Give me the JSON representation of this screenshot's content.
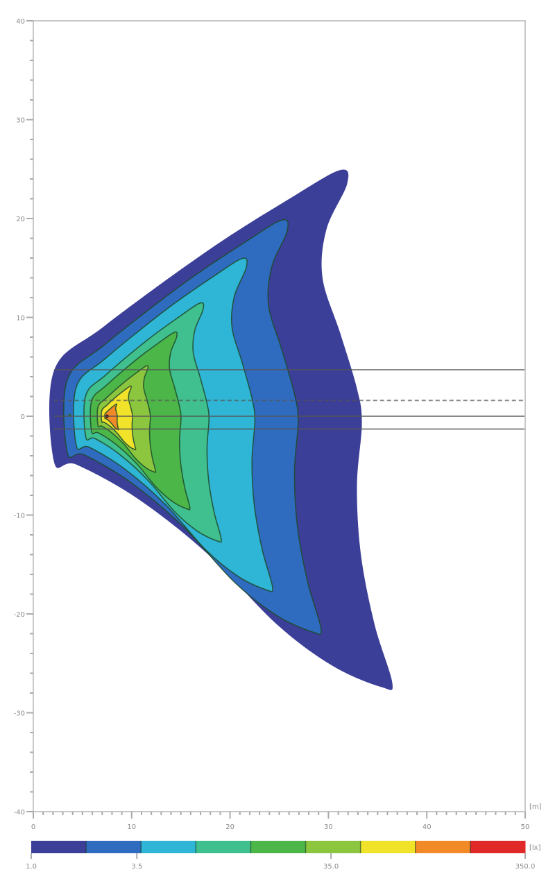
{
  "chart_data": {
    "type": "heatmap",
    "subtype": "isolux contour plot",
    "xlim": [
      0,
      50
    ],
    "ylim": [
      -40,
      40
    ],
    "x_ticks": [
      0,
      10,
      20,
      30,
      40,
      50
    ],
    "x_tick_labels": [
      "0",
      "10",
      "20",
      "30",
      "40",
      "50"
    ],
    "y_ticks": [
      40,
      30,
      20,
      10,
      0,
      -10,
      -20,
      -30,
      -40
    ],
    "y_tick_labels": [
      "40",
      "30",
      "20",
      "10",
      "0",
      "-10",
      "-20",
      "-30",
      "-40"
    ],
    "x_unit": "[m]",
    "grid": false,
    "peak_position": [
      7.5,
      0
    ],
    "outer_boundary": [
      [
        2.1,
        4.6
      ],
      [
        7.2,
        9.1
      ],
      [
        17.8,
        16.8
      ],
      [
        26.2,
        22.1
      ],
      [
        31.2,
        24.9
      ],
      [
        31.9,
        23.5
      ],
      [
        29.8,
        18.9
      ],
      [
        29.4,
        14.0
      ],
      [
        31.2,
        8.4
      ],
      [
        32.9,
        2.8
      ],
      [
        33.4,
        -0.7
      ],
      [
        32.9,
        -7.0
      ],
      [
        33.3,
        -14.0
      ],
      [
        34.7,
        -21.1
      ],
      [
        36.5,
        -27.0
      ],
      [
        35.4,
        -27.4
      ],
      [
        30.5,
        -25.3
      ],
      [
        24.8,
        -21.1
      ],
      [
        17.8,
        -14.0
      ],
      [
        10.7,
        -8.4
      ],
      [
        4.4,
        -4.9
      ],
      [
        2.1,
        -4.6
      ]
    ],
    "contour_scale_from_peak": [
      1,
      0.75,
      0.58,
      0.4,
      0.29,
      0.17,
      0.1,
      0.04
    ],
    "reference_lines_y": [
      {
        "y": 4.7,
        "style": "solid"
      },
      {
        "y": 1.6,
        "style": "dashed"
      },
      {
        "y": 0,
        "style": "solid"
      },
      {
        "y": -1.3,
        "style": "solid"
      }
    ],
    "colorbar": {
      "unit": "[lx]",
      "scale": "log",
      "range": [
        1.0,
        350.0
      ],
      "tick_values": [
        1.0,
        3.5,
        35.0,
        350.0
      ],
      "tick_labels": [
        "1.0",
        "3.5",
        "35.0",
        "350.0"
      ],
      "colors": [
        "#3c3f98",
        "#2f6cc0",
        "#2fb6d6",
        "#3fc08e",
        "#4cb748",
        "#8cc63f",
        "#f0e32a",
        "#f28b27",
        "#e02a2a"
      ]
    }
  }
}
